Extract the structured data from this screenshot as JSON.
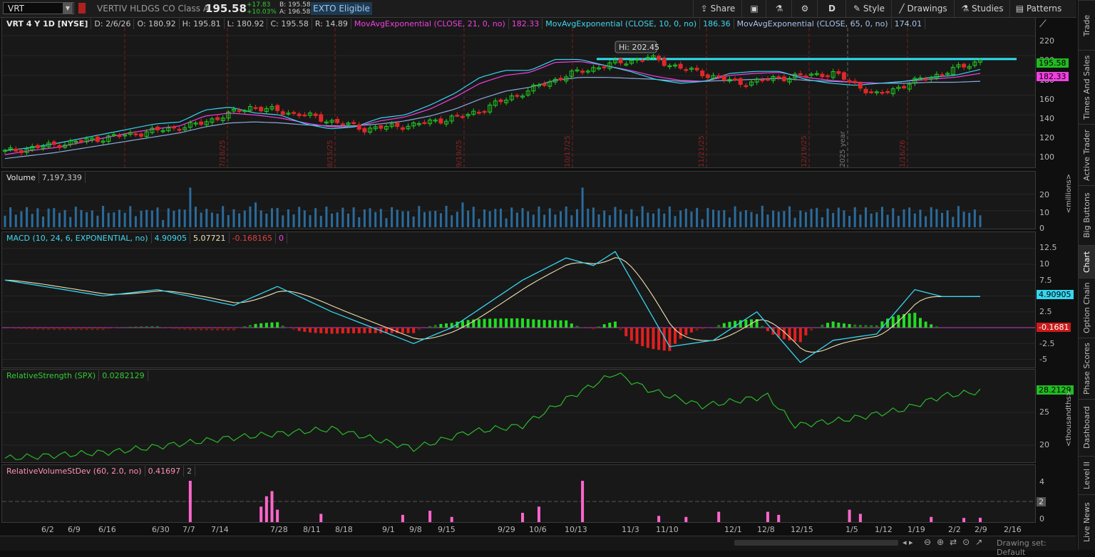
{
  "toolbar": {
    "symbol": "VRT",
    "company": "VERTIV HLDGS CO Class A",
    "last": "195.58",
    "change": "+17.83",
    "change_pct": "+10.03%",
    "bid": "B: 195.58",
    "ask": "A: 196.58",
    "exto": "EXTO Eligible",
    "share": "Share",
    "aggregation": "D",
    "style": "Style",
    "drawings": "Drawings",
    "studies": "Studies",
    "patterns": "Patterns"
  },
  "price_pane": {
    "header": [
      "VRT 4 Y 1D [NYSE]",
      "D: 2/6/26",
      "O: 180.92",
      "H: 195.81",
      "L: 180.92",
      "C: 195.58",
      "R: 14.89"
    ],
    "ema21_label": "MovAvgExponential (CLOSE, 21, 0, no)",
    "ema21_value": "182.33",
    "ema10_label": "MovAvgExponential (CLOSE, 10, 0, no)",
    "ema10_value": "186.36",
    "ema65_label": "MovAvgExponential (CLOSE, 65, 0, no)",
    "ema65_value": "174.01",
    "hi_bubble": "Hi: 202.45",
    "y_ticks": [
      "220",
      "200",
      "180",
      "160",
      "140",
      "120",
      "100"
    ],
    "last_badge": "195.58",
    "ema_badge": "182.33",
    "vertical_labels": [
      "7/18/25",
      "8/15/25",
      "9/19/25",
      "10/17/25",
      "11/21/25",
      "12/19/25",
      "2025 year",
      "1/16/26"
    ]
  },
  "volume_pane": {
    "title": "Volume",
    "value": "7,197,339",
    "y_ticks": [
      "20",
      "10",
      "0"
    ],
    "unit": "<millions>"
  },
  "macd_pane": {
    "title": "MACD (10, 24, 6, EXPONENTIAL, no)",
    "value": "4.90905",
    "avg": "5.07721",
    "diff": "-0.168165",
    "zero": "0",
    "y_ticks": [
      "12.5",
      "10",
      "7.5",
      "5",
      "2.5",
      "0",
      "-2.5",
      "-5"
    ],
    "value_badge": "4.90905",
    "diff_badge": "-0.1681"
  },
  "rs_pane": {
    "title": "RelativeStrength (SPX)",
    "value": "0.0282129",
    "y_ticks": [
      "25",
      "20"
    ],
    "badge": "28.2129",
    "unit": "<thousandths>"
  },
  "rv_pane": {
    "title": "RelativeVolumeStDev (60, 2.0, no)",
    "value": "0.41697",
    "extra": "2",
    "y_ticks": [
      "4",
      "0"
    ],
    "badge": "2"
  },
  "x_axis": [
    "6/2",
    "6/9",
    "6/16",
    "6/30",
    "7/7",
    "7/14",
    "7/28",
    "8/11",
    "8/18",
    "9/1",
    "9/8",
    "9/15",
    "9/29",
    "10/6",
    "10/13",
    "11/3",
    "11/10",
    "12/1",
    "12/8",
    "12/15",
    "1/5",
    "1/12",
    "1/19",
    "2/2",
    "2/9",
    "2/16"
  ],
  "sidebar": [
    "Trade",
    "Times And Sales",
    "Active Trader",
    "Big Buttons",
    "Chart",
    "Option Chain",
    "Phase Scores",
    "Dashboard",
    "Level II",
    "Live News"
  ],
  "status": {
    "drawing_set": "Drawing set: Default"
  },
  "colors": {
    "up": "#22cc22",
    "down": "#e02828",
    "ema10": "#35d6f0",
    "ema21": "#f040e0",
    "ema65": "#88aadd",
    "volume": "#2a6b9c",
    "macd": "#35d6f0",
    "macd_avg": "#f0e0b0",
    "rs": "#2ab82a",
    "rv": "#ff66cc"
  },
  "chart_data": [
    {
      "type": "line",
      "title": "VRT 4 Y 1D [NYSE]",
      "ylim": [
        90,
        228
      ],
      "series": [
        {
          "name": "MovAvgExponential (CLOSE, 10, 0, no)",
          "values": [
            104,
            107,
            111,
            116,
            121,
            126,
            131,
            133,
            145,
            148,
            142,
            140,
            131,
            126,
            128,
            137,
            140,
            150,
            162,
            178,
            185,
            185,
            196,
            196,
            190,
            184,
            176,
            172,
            174,
            182,
            184,
            184,
            176,
            172,
            170,
            172,
            174,
            178,
            180,
            186
          ]
        },
        {
          "name": "MovAvgExponential (CLOSE, 21, 0, no)",
          "values": [
            100,
            104,
            107,
            112,
            117,
            122,
            126,
            129,
            139,
            142,
            140,
            137,
            132,
            128,
            128,
            134,
            138,
            146,
            158,
            172,
            180,
            183,
            193,
            194,
            190,
            185,
            179,
            175,
            174,
            180,
            182,
            183,
            178,
            175,
            173,
            172,
            174,
            176,
            178,
            182
          ]
        },
        {
          "name": "MovAvgExponential (CLOSE, 65, 0, no)",
          "values": [
            96,
            99,
            102,
            106,
            110,
            114,
            118,
            122,
            128,
            132,
            133,
            132,
            130,
            129,
            129,
            131,
            134,
            139,
            146,
            156,
            164,
            168,
            175,
            178,
            178,
            177,
            176,
            174,
            174,
            175,
            176,
            177,
            175,
            174,
            173,
            172,
            172,
            173,
            173,
            174
          ]
        }
      ]
    }
  ]
}
